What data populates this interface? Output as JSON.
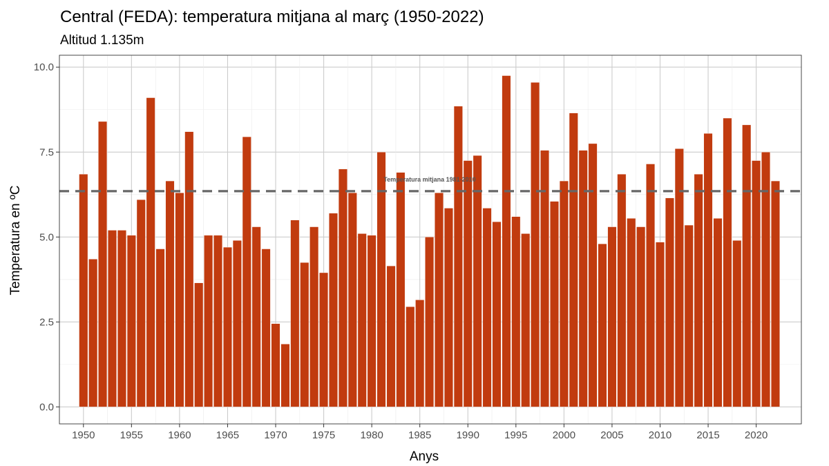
{
  "chart_data": {
    "type": "bar",
    "title": "Central (FEDA): temperatura mitjana al març (1950-2022)",
    "subtitle": "Altitud 1.135m",
    "xlabel": "Anys",
    "ylabel": "Temperatura en ºC",
    "x": [
      1950,
      1951,
      1952,
      1953,
      1954,
      1955,
      1956,
      1957,
      1958,
      1959,
      1960,
      1961,
      1962,
      1963,
      1964,
      1965,
      1966,
      1967,
      1968,
      1969,
      1970,
      1971,
      1972,
      1973,
      1974,
      1975,
      1976,
      1977,
      1978,
      1979,
      1980,
      1981,
      1982,
      1983,
      1984,
      1985,
      1986,
      1987,
      1988,
      1989,
      1990,
      1991,
      1992,
      1993,
      1994,
      1995,
      1996,
      1997,
      1998,
      1999,
      2000,
      2001,
      2002,
      2003,
      2004,
      2005,
      2006,
      2007,
      2008,
      2009,
      2010,
      2011,
      2012,
      2013,
      2014,
      2015,
      2016,
      2017,
      2018,
      2019,
      2020,
      2021,
      2022
    ],
    "values": [
      6.85,
      4.35,
      8.4,
      5.2,
      5.2,
      5.05,
      6.1,
      9.1,
      4.65,
      6.65,
      6.3,
      8.1,
      3.65,
      5.05,
      5.05,
      4.7,
      4.9,
      7.95,
      5.3,
      4.65,
      2.45,
      1.85,
      5.5,
      4.25,
      5.3,
      3.95,
      5.7,
      7.0,
      6.3,
      5.1,
      5.05,
      7.5,
      4.15,
      6.9,
      2.95,
      3.15,
      5.0,
      6.3,
      5.85,
      8.85,
      7.25,
      7.4,
      5.85,
      5.45,
      9.75,
      5.6,
      5.1,
      9.55,
      7.55,
      6.05,
      6.65,
      8.65,
      7.55,
      7.75,
      4.8,
      5.3,
      6.85,
      5.55,
      5.3,
      7.15,
      4.85,
      6.15,
      7.6,
      5.35,
      6.85,
      8.05,
      5.55,
      8.5,
      4.9,
      8.3,
      7.25,
      7.5,
      6.65
    ],
    "x_ticks": [
      1950,
      1955,
      1960,
      1965,
      1970,
      1975,
      1980,
      1985,
      1990,
      1995,
      2000,
      2005,
      2010,
      2015,
      2020
    ],
    "y_ticks": [
      0.0,
      2.5,
      5.0,
      7.5,
      10.0
    ],
    "y_tick_labels": [
      "0.0",
      "2.5",
      "5.0",
      "7.5",
      "10.0"
    ],
    "xlim": [
      1947.5,
      2024.7
    ],
    "ylim": [
      -0.5,
      10.35
    ],
    "reference_line": {
      "value": 6.35,
      "label": "Temperatura mitjana 1981-2010",
      "style": "dashed"
    },
    "bar_color": "#c13b0f",
    "grid": true,
    "legend": "none"
  }
}
